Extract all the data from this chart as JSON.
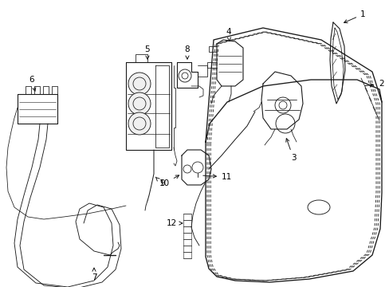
{
  "bg_color": "#ffffff",
  "line_color": "#1a1a1a",
  "lw": 0.8,
  "fig_w": 4.89,
  "fig_h": 3.6,
  "dpi": 100
}
